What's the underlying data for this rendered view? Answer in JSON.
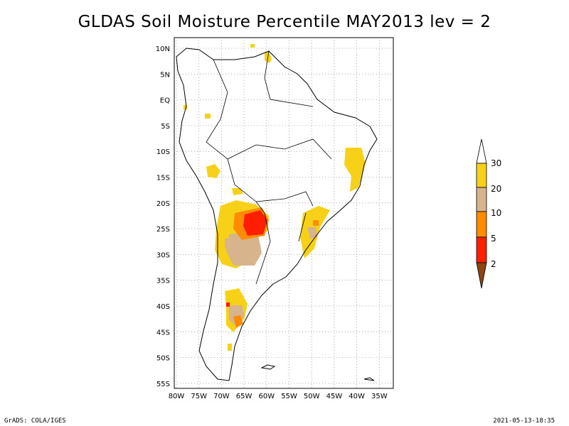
{
  "title": "GLDAS Soil Moisture Percentile MAY2013 lev = 2",
  "footer": {
    "left": "GrADS: COLA/IGES",
    "right": "2021-05-13-18:35"
  },
  "map": {
    "lon_labels": [
      "80W",
      "75W",
      "70W",
      "65W",
      "60W",
      "55W",
      "50W",
      "45W",
      "40W",
      "35W"
    ],
    "lat_labels": [
      "10N",
      "5N",
      "EQ",
      "5S",
      "10S",
      "15S",
      "20S",
      "25S",
      "30S",
      "35S",
      "40S",
      "45S",
      "50S",
      "55S"
    ],
    "grid": true,
    "region": "South America"
  },
  "legend": {
    "title": "",
    "entries": [
      {
        "label": "30",
        "color": "#f7d117"
      },
      {
        "label": "20",
        "color": "#d8b48c"
      },
      {
        "label": "10",
        "color": "#ff8c00"
      },
      {
        "label": "5",
        "color": "#ff1e00"
      },
      {
        "label": "2",
        "color": "#8b4513"
      }
    ],
    "top_color": "#ffffff",
    "bottom_color": "#8b4513"
  },
  "colors": {
    "p30": "#f7d117",
    "p20": "#d8b48c",
    "p10": "#ff8c00",
    "p5": "#ff1e00",
    "p2": "#8b4513",
    "grid": "#9a9a9a",
    "coast": "#000000"
  }
}
